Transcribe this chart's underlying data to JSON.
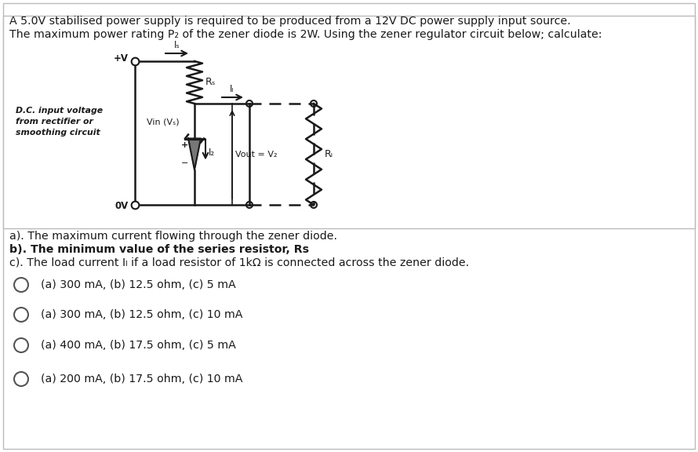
{
  "title_line1": "A 5.0V stabilised power supply is required to be produced from a 12V DC power supply input source.",
  "title_line2": "The maximum power rating P₂ of the zener diode is 2W. Using the zener regulator circuit below; calculate:",
  "question_a": "a). The maximum current flowing through the zener diode.",
  "question_b": "b). The minimum value of the series resistor, Rs",
  "question_c": "c). The load current Iₗ if a load resistor of 1kΩ is connected across the zener diode.",
  "options": [
    "(a) 300 mA, (b) 12.5 ohm, (c) 5 mA",
    "(a) 300 mA, (b) 12.5 ohm, (c) 10 mA",
    "(a) 400 mA, (b) 17.5 ohm, (c) 5 mA",
    "(a) 200 mA, (b) 17.5 ohm, (c) 10 mA"
  ],
  "bg_color": "#ffffff",
  "text_color": "#1a1a1a",
  "circuit_color": "#1a1a1a",
  "label_pv": "+V",
  "label_ov": "0V",
  "label_dc": "D.C. input voltage\nfrom rectifier or\nsmoothing circuit",
  "label_vin": "Vin (Vₛ)",
  "label_vout": "Vout = V₂",
  "label_rs": "Rₛ",
  "label_rl": "Rₗ",
  "label_is": "Iₛ",
  "label_il": "Iₗ",
  "label_iz": "I₂"
}
